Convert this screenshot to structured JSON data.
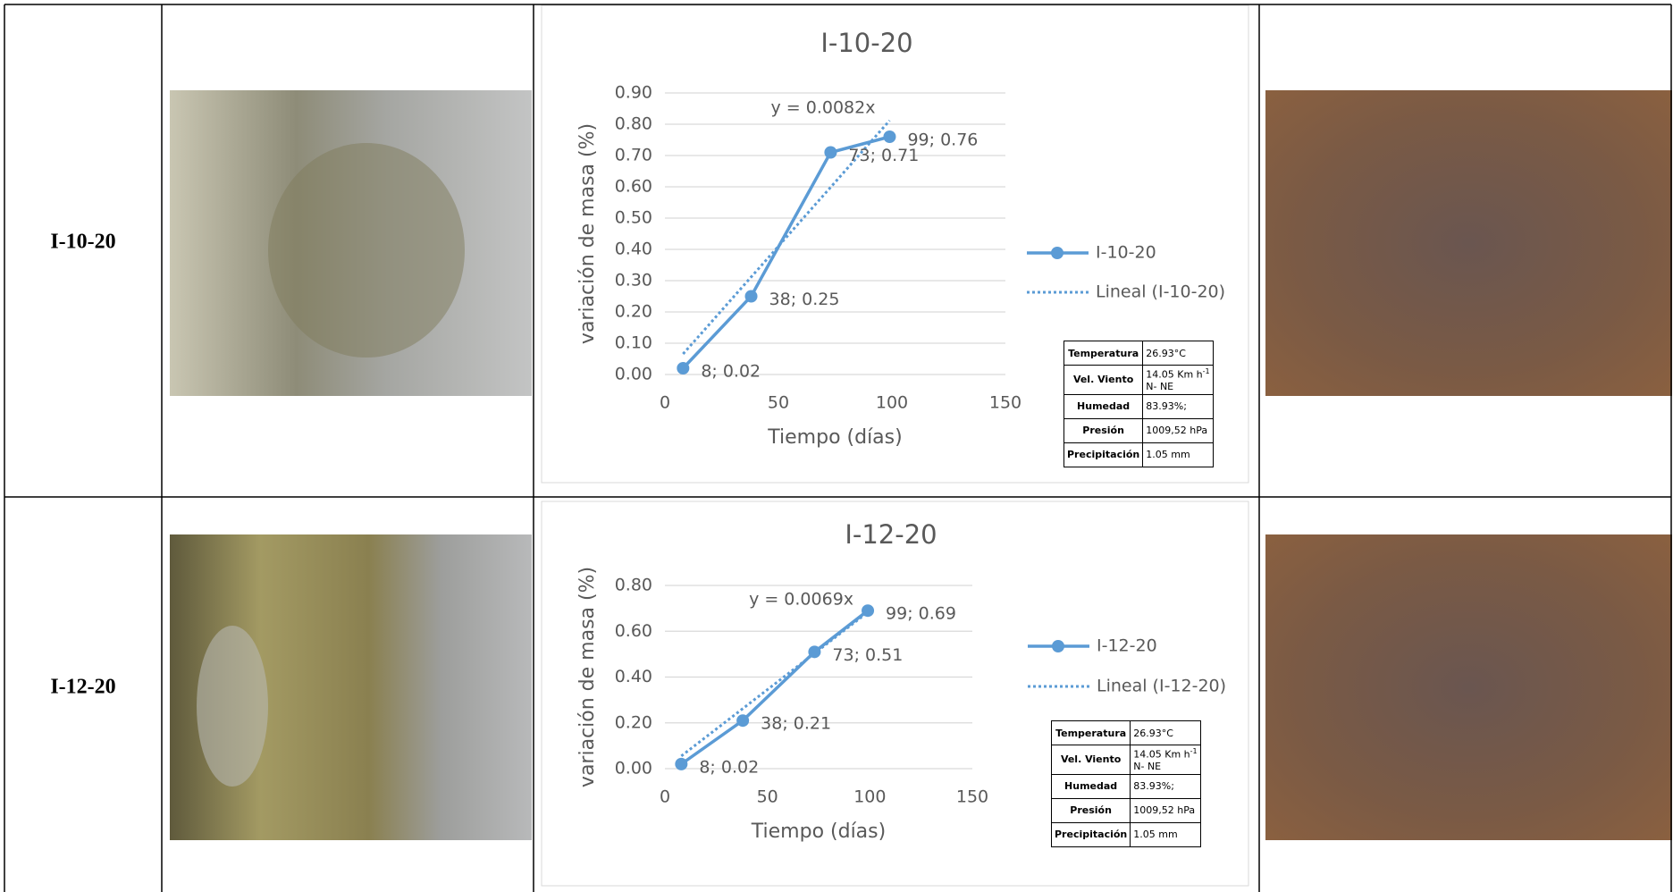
{
  "rows": [
    {
      "sample": "I-10-20",
      "chart_data": {
        "type": "line",
        "title": "I-10-20",
        "xlabel": "Tiempo (días)",
        "ylabel": "variación de masa (%)",
        "xlim": [
          0,
          150
        ],
        "xticks": [
          0,
          50,
          100,
          150
        ],
        "ylim": [
          0,
          0.9
        ],
        "yticks": [
          {
            "value": 0,
            "label": "0.00"
          },
          {
            "value": 0.1,
            "label": "0.10"
          },
          {
            "value": 0.2,
            "label": "0.20"
          },
          {
            "value": 0.3,
            "label": "0.30"
          },
          {
            "value": 0.4,
            "label": "0.40"
          },
          {
            "value": 0.5,
            "label": "0.50"
          },
          {
            "value": 0.6,
            "label": "0.60"
          },
          {
            "value": 0.7,
            "label": "0.70"
          },
          {
            "value": 0.8,
            "label": "0.80"
          },
          {
            "value": 0.9,
            "label": "0.90"
          }
        ],
        "grid": true,
        "series": [
          {
            "name": "I-10-20",
            "color": "#5b9bd5",
            "x": [
              8,
              38,
              73,
              99
            ],
            "values": [
              0.02,
              0.25,
              0.71,
              0.76
            ],
            "value_labels": [
              "8; 0.02",
              "38; 0.25",
              "73; 0.71",
              "99; 0.76"
            ]
          }
        ],
        "trendline": {
          "name": "Lineal (I-10-20)",
          "slope": 0.0082,
          "label": "y = 0.0082x",
          "color": "#5b9bd5"
        }
      },
      "weather": [
        {
          "label": "Temperatura",
          "value": "26.93°C"
        },
        {
          "label": "Vel. Viento",
          "value": "14.05 Km h",
          "sup": "-1",
          "line2": "N- NE"
        },
        {
          "label": "Humedad",
          "value": "83.93%;"
        },
        {
          "label": "Presión",
          "value": "1009,52  hPa"
        },
        {
          "label": "Precipitación",
          "value": "1.05 mm"
        }
      ]
    },
    {
      "sample": "I-12-20",
      "chart_data": {
        "type": "line",
        "title": "I-12-20",
        "xlabel": "Tiempo (días)",
        "ylabel": "variación de masa (%)",
        "xlim": [
          0,
          150
        ],
        "xticks": [
          0,
          50,
          100,
          150
        ],
        "ylim": [
          0,
          0.8
        ],
        "yticks": [
          {
            "value": 0,
            "label": "0.00"
          },
          {
            "value": 0.2,
            "label": "0.20"
          },
          {
            "value": 0.4,
            "label": "0.40"
          },
          {
            "value": 0.6,
            "label": "0.60"
          },
          {
            "value": 0.8,
            "label": "0.80"
          }
        ],
        "grid": true,
        "series": [
          {
            "name": "I-12-20",
            "color": "#5b9bd5",
            "x": [
              8,
              38,
              73,
              99
            ],
            "values": [
              0.02,
              0.21,
              0.51,
              0.69
            ],
            "value_labels": [
              "8; 0.02",
              "38; 0.21",
              "73; 0.51",
              "99; 0.69"
            ]
          }
        ],
        "trendline": {
          "name": "Lineal (I-12-20)",
          "slope": 0.0069,
          "label": "y = 0.0069x",
          "color": "#5b9bd5"
        }
      },
      "weather": [
        {
          "label": "Temperatura",
          "value": "26.93°C"
        },
        {
          "label": "Vel. Viento",
          "value": "14.05 Km h",
          "sup": "-1",
          "line2": "N- NE"
        },
        {
          "label": "Humedad",
          "value": "83.93%;"
        },
        {
          "label": "Presión",
          "value": "1009,52  hPa"
        },
        {
          "label": "Precipitación",
          "value": "1.05 mm"
        }
      ]
    }
  ]
}
